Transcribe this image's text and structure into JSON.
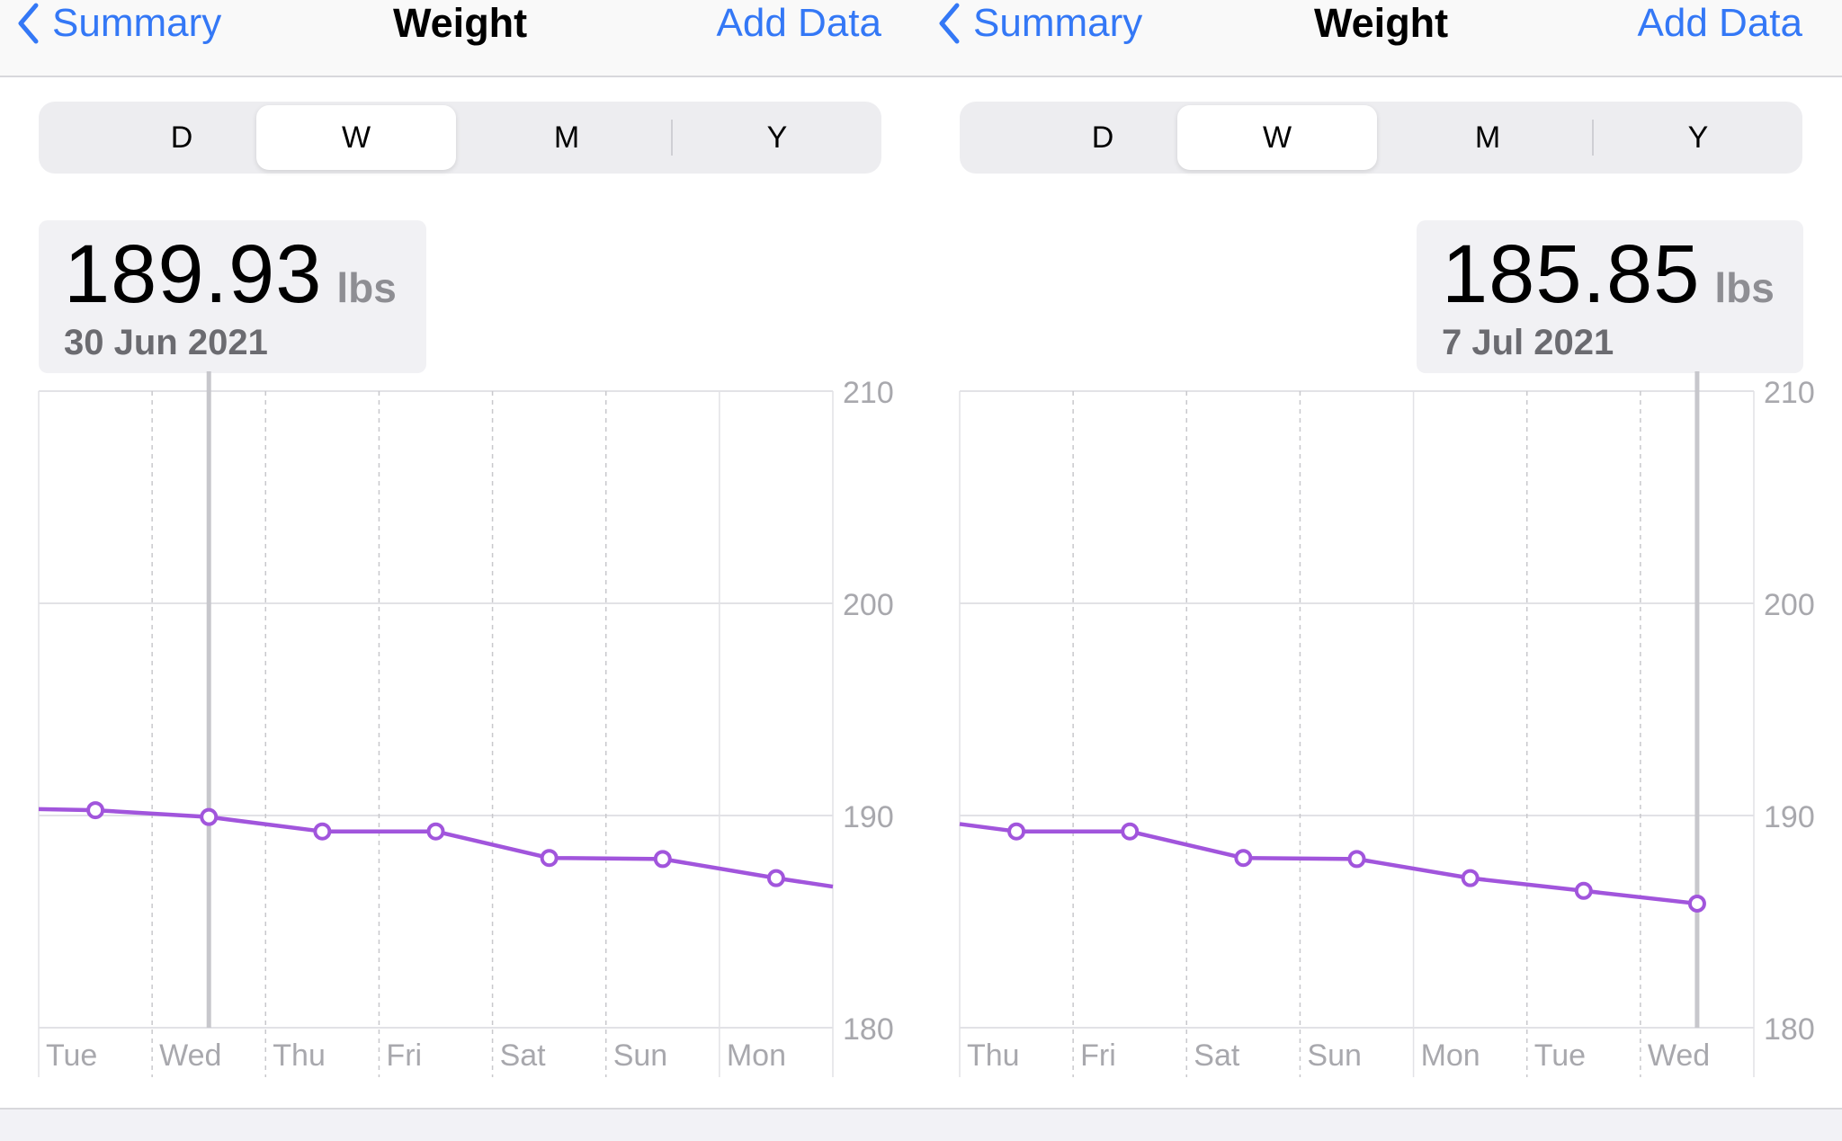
{
  "colors": {
    "accent": "#3478f6",
    "series": "#a155dc",
    "grid_solid": "#e2e2e6",
    "grid_dashed": "#c8c8cc",
    "axis_label": "#a8a8ad",
    "cursor": "#c7c7cc"
  },
  "icons": {
    "back": "chevron-left-icon"
  },
  "panels": [
    {
      "nav": {
        "back_label": "Summary",
        "title": "Weight",
        "add_label": "Add Data"
      },
      "segments": [
        {
          "label": "D",
          "selected": false
        },
        {
          "label": "W",
          "selected": true
        },
        {
          "label": "M",
          "selected": false
        },
        {
          "label": "Y",
          "selected": false
        }
      ],
      "readout": {
        "value": "189.93",
        "unit": "lbs",
        "date": "30 Jun 2021"
      },
      "chart_data": {
        "type": "line",
        "title": "",
        "xlabel": "",
        "ylabel": "",
        "categories": [
          "Tue",
          "Wed",
          "Thu",
          "Fri",
          "Sat",
          "Sun",
          "Mon"
        ],
        "series": [
          {
            "values": [
              190.25,
              189.93,
              189.25,
              189.25,
              188.0,
              187.95,
              187.05
            ]
          }
        ],
        "line_start_value": 190.3,
        "line_end_value": 186.65,
        "ylim": [
          180,
          210
        ],
        "yticks": [
          210,
          200,
          190,
          180
        ],
        "selected_category": "Wed",
        "grid": true
      }
    },
    {
      "nav": {
        "back_label": "Summary",
        "title": "Weight",
        "add_label": "Add Data"
      },
      "segments": [
        {
          "label": "D",
          "selected": false
        },
        {
          "label": "W",
          "selected": true
        },
        {
          "label": "M",
          "selected": false
        },
        {
          "label": "Y",
          "selected": false
        }
      ],
      "readout": {
        "value": "185.85",
        "unit": "lbs",
        "date": "7 Jul 2021"
      },
      "chart_data": {
        "type": "line",
        "title": "",
        "xlabel": "",
        "ylabel": "",
        "categories": [
          "Thu",
          "Fri",
          "Sat",
          "Sun",
          "Mon",
          "Tue",
          "Wed"
        ],
        "series": [
          {
            "values": [
              189.25,
              189.25,
              188.0,
              187.95,
              187.05,
              186.45,
              185.85
            ]
          }
        ],
        "line_start_value": 189.6,
        "line_end_value": null,
        "ylim": [
          180,
          210
        ],
        "yticks": [
          210,
          200,
          190,
          180
        ],
        "selected_category": "Wed",
        "grid": true
      }
    }
  ]
}
